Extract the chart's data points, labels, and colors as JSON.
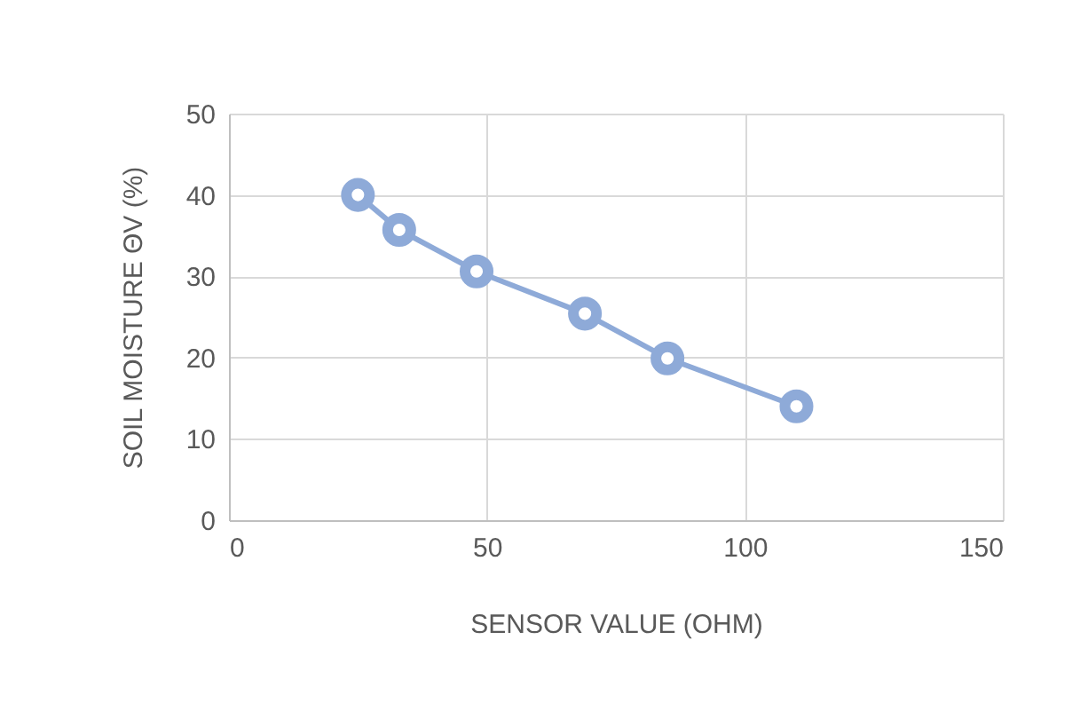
{
  "chart_data": {
    "type": "line",
    "xlabel": "SENSOR VALUE (OHM)",
    "ylabel": "SOIL MOISTURE ΘV (%)",
    "x": [
      25,
      33,
      48,
      69,
      85,
      110
    ],
    "series": [
      {
        "color": "#8eaad8",
        "values": [
          40,
          35.7,
          30.6,
          25.4,
          19.9,
          14
        ]
      }
    ],
    "xlim": [
      0,
      150
    ],
    "xticks": [
      0,
      50,
      100,
      150
    ],
    "ylim": [
      0,
      50
    ],
    "yticks": [
      0,
      10,
      20,
      30,
      40,
      50
    ],
    "grid": true,
    "marker": "circle",
    "line_style": "solid"
  }
}
